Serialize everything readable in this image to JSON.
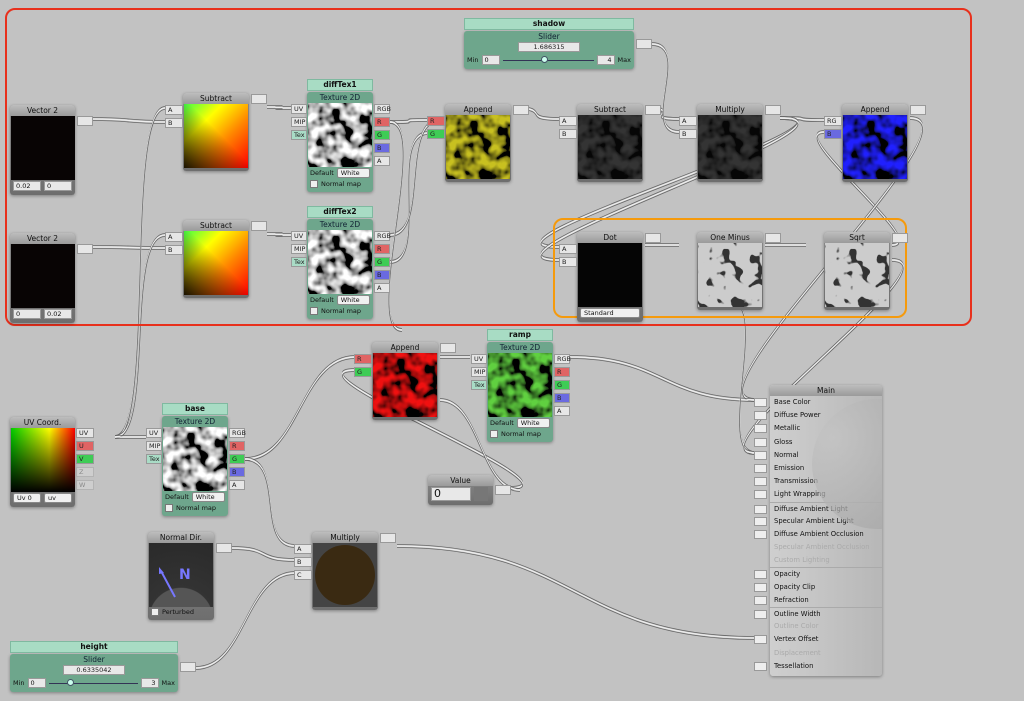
{
  "colors": {
    "selection_red": "#e8301c",
    "selection_orange": "#f59a0c",
    "node_body": "#7a7a7a",
    "property_green": "#6ea68c"
  },
  "nodes": {
    "vec2a": {
      "title": "Vector 2",
      "values": [
        "0.02",
        "0"
      ]
    },
    "vec2b": {
      "title": "Vector 2",
      "values": [
        "0",
        "0.02"
      ]
    },
    "sub1": {
      "title": "Subtract",
      "inputs": [
        "A",
        "B"
      ]
    },
    "sub2": {
      "title": "Subtract",
      "inputs": [
        "A",
        "B"
      ]
    },
    "diffTex1": {
      "property_name": "diffTex1",
      "title": "Texture 2D",
      "inputs": [
        "UV",
        "MIP",
        "Tex"
      ],
      "outputs": [
        "RGB",
        "R",
        "G",
        "B",
        "A"
      ],
      "default_label": "Default",
      "default_value": "White",
      "checkbox_label": "Normal map",
      "checkbox_checked": false
    },
    "diffTex2": {
      "property_name": "diffTex2",
      "title": "Texture 2D",
      "inputs": [
        "UV",
        "MIP",
        "Tex"
      ],
      "outputs": [
        "RGB",
        "R",
        "G",
        "B",
        "A"
      ],
      "default_label": "Default",
      "default_value": "White",
      "checkbox_label": "Normal map",
      "checkbox_checked": false
    },
    "append1": {
      "title": "Append",
      "inputs": [
        "R",
        "G"
      ]
    },
    "sub3": {
      "title": "Subtract",
      "inputs": [
        "A",
        "B"
      ]
    },
    "mul1": {
      "title": "Multiply",
      "inputs": [
        "A",
        "B"
      ]
    },
    "append2": {
      "title": "Append",
      "inputs": [
        "RG",
        "B"
      ]
    },
    "shadow": {
      "property_name": "shadow",
      "title": "Slider",
      "value": "1.686315",
      "min_label": "Min",
      "min": "0",
      "max_label": "Max",
      "max": "4",
      "fraction": 0.42
    },
    "dot": {
      "title": "Dot",
      "inputs": [
        "A",
        "B"
      ],
      "select": "Standard"
    },
    "oneminus": {
      "title": "One Minus"
    },
    "sqrt": {
      "title": "Sqrt"
    },
    "append3": {
      "title": "Append",
      "inputs": [
        "R",
        "G"
      ]
    },
    "ramp": {
      "property_name": "ramp",
      "title": "Texture 2D",
      "inputs": [
        "UV",
        "MIP",
        "Tex"
      ],
      "outputs": [
        "RGB",
        "R",
        "G",
        "B",
        "A"
      ],
      "default_label": "Default",
      "default_value": "White",
      "checkbox_label": "Normal map",
      "checkbox_checked": false
    },
    "uv": {
      "title": "UV Coord.",
      "outputs": [
        "UV",
        "U",
        "V",
        "Z",
        "W"
      ],
      "selects": [
        "Uv 0",
        "uv"
      ]
    },
    "base": {
      "property_name": "base",
      "title": "Texture 2D",
      "inputs": [
        "UV",
        "MIP",
        "Tex"
      ],
      "outputs": [
        "RGB",
        "R",
        "G",
        "B",
        "A"
      ],
      "default_label": "Default",
      "default_value": "White",
      "checkbox_label": "Normal map",
      "checkbox_checked": false
    },
    "value": {
      "title": "Value",
      "value": "0"
    },
    "normaldir": {
      "title": "Normal Dir.",
      "checkbox_label": "Perturbed",
      "checkbox_checked": false,
      "glyph": "N"
    },
    "mul2": {
      "title": "Multiply",
      "inputs": [
        "A",
        "B",
        "C"
      ]
    },
    "height": {
      "property_name": "height",
      "title": "Slider",
      "value": "0.6335042",
      "min_label": "Min",
      "min": "0",
      "max_label": "Max",
      "max": "3",
      "fraction": 0.21
    }
  },
  "main": {
    "title": "Main",
    "items": [
      {
        "label": "Base Color",
        "enabled": true
      },
      {
        "label": "Diffuse Power",
        "enabled": true
      },
      {
        "label": "Metallic",
        "enabled": true
      },
      {
        "label": "Gloss",
        "enabled": true
      },
      {
        "label": "Normal",
        "enabled": true
      },
      {
        "label": "Emission",
        "enabled": true
      },
      {
        "label": "Transmission",
        "enabled": true
      },
      {
        "label": "Light Wrapping",
        "enabled": true
      },
      {
        "label": "Diffuse Ambient Light",
        "enabled": true
      },
      {
        "label": "Specular Ambient Light",
        "enabled": true
      },
      {
        "label": "Diffuse Ambient Occlusion",
        "enabled": true
      },
      {
        "label": "Specular Ambient Occlusion",
        "enabled": false
      },
      {
        "label": "Custom Lighting",
        "enabled": false
      },
      {
        "label": "Opacity",
        "enabled": true
      },
      {
        "label": "Opacity Clip",
        "enabled": true
      },
      {
        "label": "Refraction",
        "enabled": true
      },
      {
        "label": "Outline Width",
        "enabled": true
      },
      {
        "label": "Outline Color",
        "enabled": false
      },
      {
        "label": "Vertex Offset",
        "enabled": true
      },
      {
        "label": "Displacement",
        "enabled": false
      },
      {
        "label": "Tessellation",
        "enabled": true
      }
    ]
  }
}
